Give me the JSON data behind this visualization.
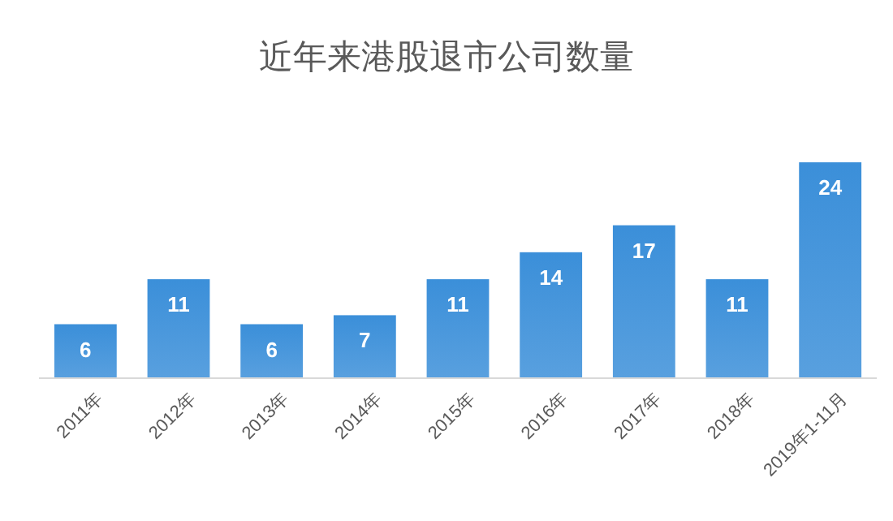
{
  "chart_data": {
    "type": "bar",
    "title": "近年来港股退市公司数量",
    "categories": [
      "2011年",
      "2012年",
      "2013年",
      "2014年",
      "2015年",
      "2016年",
      "2017年",
      "2018年",
      "2019年1-11月"
    ],
    "values": [
      6,
      11,
      6,
      7,
      11,
      14,
      17,
      11,
      24
    ],
    "color": "#3b8fd9",
    "data_labels": true
  }
}
